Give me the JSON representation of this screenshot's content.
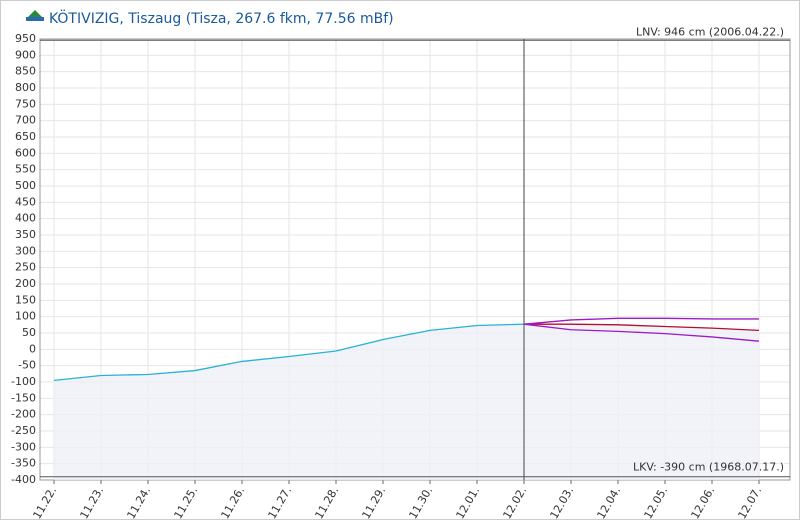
{
  "chart_data": {
    "type": "line",
    "title": "KÖTIVIZIG, Tiszaug (Tisza, 267.6 fkm, 77.56 mBf)",
    "categories": [
      "11.22.",
      "11.23.",
      "11.24.",
      "11.25.",
      "11.26.",
      "11.27.",
      "11.28.",
      "11.29.",
      "11.30.",
      "12.01.",
      "12.02.",
      "12.03.",
      "12.04.",
      "12.05.",
      "12.06.",
      "12.07."
    ],
    "series": [
      {
        "color": "#27b3d4",
        "area": true,
        "values": [
          -95,
          -80,
          -77,
          -65,
          -37,
          -22,
          -5,
          30,
          58,
          73,
          77,
          null,
          null,
          null,
          null,
          null
        ]
      },
      {
        "color": "#b0102a",
        "area": true,
        "values": [
          null,
          null,
          null,
          null,
          null,
          null,
          null,
          null,
          null,
          null,
          77,
          77,
          75,
          70,
          65,
          58
        ]
      },
      {
        "color": "#9b1bc4",
        "values": [
          null,
          null,
          null,
          null,
          null,
          null,
          null,
          null,
          null,
          null,
          77,
          90,
          95,
          95,
          93,
          93
        ]
      },
      {
        "color": "#9b1bc4",
        "values": [
          null,
          null,
          null,
          null,
          null,
          null,
          null,
          null,
          null,
          null,
          77,
          60,
          55,
          48,
          38,
          25
        ]
      }
    ],
    "reference_lines": [
      {
        "value": 946,
        "label": "LNV: 946 cm (2006.04.22.)",
        "corner": "top-right"
      },
      {
        "value": -390,
        "label": "LKV: -390 cm (1968.07.17.)",
        "corner": "bottom-right"
      }
    ],
    "ylim": [
      -400,
      950
    ],
    "yticks": [
      950,
      900,
      850,
      800,
      750,
      700,
      650,
      600,
      550,
      500,
      450,
      400,
      350,
      300,
      250,
      200,
      150,
      100,
      50,
      0,
      -50,
      -100,
      -150,
      -200,
      -250,
      -300,
      -350,
      -400
    ],
    "grid": true
  }
}
